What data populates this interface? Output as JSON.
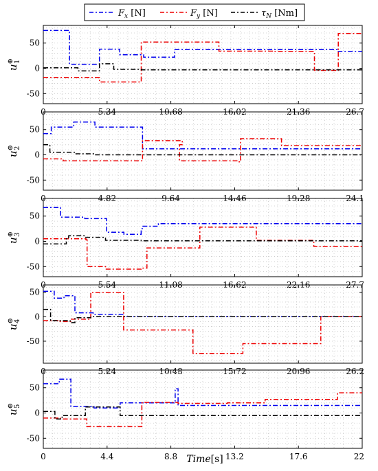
{
  "legend": [
    {
      "label": "F_x [N]",
      "color": "#0000ee"
    },
    {
      "label": "F_y [N]",
      "color": "#ee0000"
    },
    {
      "label": "τ_N [Nm]",
      "color": "#000000"
    }
  ],
  "xlabel": "Time[s]",
  "chart_data": [
    {
      "type": "line",
      "ylabel": "u_1^⊕",
      "xlim": [
        0,
        26.7
      ],
      "ylim": [
        -70,
        85
      ],
      "xticks": [
        "0",
        "5.34",
        "10.68",
        "16.02",
        "21.36",
        "26.7"
      ],
      "yticks": [
        -50,
        0,
        50
      ],
      "grid": true,
      "step": true,
      "series": [
        {
          "name": "F_x [N]",
          "color": "#0000ee",
          "points": [
            [
              0,
              75
            ],
            [
              2.2,
              75
            ],
            [
              2.2,
              8
            ],
            [
              4.7,
              8
            ],
            [
              4.7,
              38
            ],
            [
              6.4,
              38
            ],
            [
              6.4,
              27
            ],
            [
              8.4,
              27
            ],
            [
              8.4,
              22
            ],
            [
              11,
              22
            ],
            [
              11,
              37
            ],
            [
              19,
              37
            ],
            [
              19,
              37
            ],
            [
              24.7,
              37
            ],
            [
              24.7,
              33
            ],
            [
              26.7,
              33
            ]
          ]
        },
        {
          "name": "F_y [N]",
          "color": "#ee0000",
          "points": [
            [
              0,
              -18
            ],
            [
              4.7,
              -18
            ],
            [
              4.7,
              -27
            ],
            [
              8.2,
              -27
            ],
            [
              8.2,
              52
            ],
            [
              14.7,
              52
            ],
            [
              14.7,
              34
            ],
            [
              19.3,
              34
            ],
            [
              19.3,
              34
            ],
            [
              19.3,
              33
            ],
            [
              22.7,
              33
            ],
            [
              22.7,
              -4
            ],
            [
              24.7,
              -4
            ],
            [
              24.7,
              69
            ],
            [
              26.7,
              69
            ]
          ]
        },
        {
          "name": "τ_N [Nm]",
          "color": "#000000",
          "points": [
            [
              0,
              1
            ],
            [
              2.9,
              1
            ],
            [
              2.9,
              -5
            ],
            [
              4.7,
              -5
            ],
            [
              4.7,
              9
            ],
            [
              5.9,
              9
            ],
            [
              5.9,
              -2
            ],
            [
              8.2,
              -2
            ],
            [
              8.2,
              -3
            ],
            [
              26.7,
              -3
            ]
          ]
        }
      ]
    },
    {
      "type": "line",
      "ylabel": "u_2^⊕",
      "xlim": [
        0,
        24.1
      ],
      "ylim": [
        -70,
        85
      ],
      "xticks": [
        "0",
        "4.82",
        "9.64",
        "14.46",
        "19.28",
        "24.1"
      ],
      "yticks": [
        -50,
        0,
        50
      ],
      "grid": true,
      "step": true,
      "series": [
        {
          "name": "F_x [N]",
          "color": "#0000ee",
          "points": [
            [
              0,
              42
            ],
            [
              0.6,
              42
            ],
            [
              0.6,
              55
            ],
            [
              2.3,
              55
            ],
            [
              2.3,
              65
            ],
            [
              3.9,
              65
            ],
            [
              3.9,
              55
            ],
            [
              7.5,
              55
            ],
            [
              7.5,
              12
            ],
            [
              24.1,
              12
            ]
          ]
        },
        {
          "name": "F_y [N]",
          "color": "#ee0000",
          "points": [
            [
              0,
              -8
            ],
            [
              1.5,
              -8
            ],
            [
              1.5,
              -12
            ],
            [
              7.5,
              -12
            ],
            [
              7.5,
              28
            ],
            [
              10.5,
              28
            ],
            [
              10.5,
              20
            ],
            [
              10.5,
              20
            ],
            [
              10.3,
              20
            ],
            [
              10.3,
              -12
            ],
            [
              14.8,
              -12
            ],
            [
              14.8,
              -14
            ],
            [
              14.8,
              -14
            ],
            [
              14.9,
              -14
            ],
            [
              14.9,
              32
            ],
            [
              18,
              32
            ],
            [
              18,
              18
            ],
            [
              24.1,
              18
            ]
          ]
        },
        {
          "name": "τ_N [Nm]",
          "color": "#000000",
          "points": [
            [
              0,
              20
            ],
            [
              0.5,
              20
            ],
            [
              0.5,
              5
            ],
            [
              2.4,
              5
            ],
            [
              2.4,
              2
            ],
            [
              3.8,
              2
            ],
            [
              3.8,
              0
            ],
            [
              24.1,
              0
            ]
          ]
        }
      ]
    },
    {
      "type": "line",
      "ylabel": "u_3^⊕",
      "xlim": [
        0,
        27.7
      ],
      "ylim": [
        -70,
        85
      ],
      "xticks": [
        "0",
        "5.54",
        "11.08",
        "16.62",
        "22.16",
        "27.7"
      ],
      "yticks": [
        -50,
        0,
        50
      ],
      "grid": true,
      "step": true,
      "series": [
        {
          "name": "F_x [N]",
          "color": "#0000ee",
          "points": [
            [
              0,
              67
            ],
            [
              1.5,
              67
            ],
            [
              1.5,
              48
            ],
            [
              3.6,
              48
            ],
            [
              3.6,
              45
            ],
            [
              5.5,
              45
            ],
            [
              5.5,
              18
            ],
            [
              7,
              18
            ],
            [
              7,
              14
            ],
            [
              8.5,
              14
            ],
            [
              8.5,
              25
            ],
            [
              8.6,
              25
            ],
            [
              8.6,
              30
            ],
            [
              10,
              30
            ],
            [
              10,
              35
            ],
            [
              27.7,
              35
            ]
          ]
        },
        {
          "name": "F_y [N]",
          "color": "#ee0000",
          "points": [
            [
              0,
              5
            ],
            [
              3.7,
              5
            ],
            [
              3.7,
              3
            ],
            [
              3.8,
              3
            ],
            [
              3.8,
              -50
            ],
            [
              5.4,
              -50
            ],
            [
              5.4,
              -55
            ],
            [
              8.5,
              -55
            ],
            [
              8.5,
              -53
            ],
            [
              9,
              -53
            ],
            [
              9,
              -13
            ],
            [
              13.6,
              -13
            ],
            [
              13.6,
              28
            ],
            [
              18.5,
              28
            ],
            [
              18.5,
              2
            ],
            [
              23.5,
              2
            ],
            [
              23.5,
              -10
            ],
            [
              27.7,
              -10
            ]
          ]
        },
        {
          "name": "τ_N [Nm]",
          "color": "#000000",
          "points": [
            [
              0,
              -5
            ],
            [
              2,
              -5
            ],
            [
              2,
              5
            ],
            [
              2.2,
              5
            ],
            [
              2.2,
              11
            ],
            [
              3.6,
              11
            ],
            [
              3.6,
              8
            ],
            [
              5.4,
              8
            ],
            [
              5.4,
              2
            ],
            [
              8.5,
              2
            ],
            [
              8.5,
              1
            ],
            [
              27.7,
              1
            ]
          ]
        }
      ]
    },
    {
      "type": "line",
      "ylabel": "u_4^⊕",
      "xlim": [
        0,
        26.2
      ],
      "ylim": [
        -95,
        65
      ],
      "xticks": [
        "0",
        "5.24",
        "10.48",
        "15.72",
        "20.96",
        "26.2"
      ],
      "yticks": [
        -50,
        0,
        50
      ],
      "grid": true,
      "step": true,
      "series": [
        {
          "name": "F_x [N]",
          "color": "#0000ee",
          "points": [
            [
              0,
              52
            ],
            [
              0.9,
              52
            ],
            [
              0.9,
              38
            ],
            [
              1.7,
              38
            ],
            [
              1.7,
              43
            ],
            [
              2.6,
              43
            ],
            [
              2.6,
              8
            ],
            [
              4.1,
              8
            ],
            [
              4.1,
              5
            ],
            [
              6.6,
              5
            ],
            [
              6.6,
              0
            ],
            [
              26.2,
              0
            ]
          ]
        },
        {
          "name": "F_y [N]",
          "color": "#ee0000",
          "points": [
            [
              0,
              -8
            ],
            [
              1.3,
              -8
            ],
            [
              1.3,
              -10
            ],
            [
              2.3,
              -10
            ],
            [
              2.3,
              -5
            ],
            [
              3.9,
              -5
            ],
            [
              3.9,
              50
            ],
            [
              6.6,
              50
            ],
            [
              6.6,
              -27
            ],
            [
              12.3,
              -27
            ],
            [
              12.3,
              -75
            ],
            [
              16.4,
              -75
            ],
            [
              16.4,
              -55
            ],
            [
              22.8,
              -55
            ],
            [
              22.8,
              0
            ],
            [
              26.2,
              0
            ]
          ]
        },
        {
          "name": "τ_N [Nm]",
          "color": "#000000",
          "points": [
            [
              0,
              15
            ],
            [
              0.6,
              15
            ],
            [
              0.6,
              -8
            ],
            [
              2.2,
              -8
            ],
            [
              2.2,
              -12
            ],
            [
              2.6,
              -12
            ],
            [
              2.6,
              -2
            ],
            [
              3.9,
              -2
            ],
            [
              3.9,
              0
            ],
            [
              26.2,
              0
            ]
          ]
        }
      ]
    },
    {
      "type": "line",
      "ylabel": "u_5^⊕",
      "xlim": [
        0,
        22
      ],
      "ylim": [
        -70,
        85
      ],
      "xticks": [
        "0",
        "4.4",
        "8.8",
        "13.2",
        "17.6",
        "22"
      ],
      "yticks": [
        -50,
        0,
        50
      ],
      "grid": true,
      "step": true,
      "series": [
        {
          "name": "F_x [N]",
          "color": "#0000ee",
          "points": [
            [
              0,
              58
            ],
            [
              1.1,
              58
            ],
            [
              1.1,
              67
            ],
            [
              1.9,
              67
            ],
            [
              1.9,
              13
            ],
            [
              3.5,
              13
            ],
            [
              3.5,
              10
            ],
            [
              5.3,
              10
            ],
            [
              5.3,
              20
            ],
            [
              9.1,
              20
            ],
            [
              9.1,
              48
            ],
            [
              9.3,
              48
            ],
            [
              9.3,
              15
            ],
            [
              22,
              15
            ]
          ]
        },
        {
          "name": "F_y [N]",
          "color": "#ee0000",
          "points": [
            [
              0,
              -10
            ],
            [
              1.2,
              -10
            ],
            [
              1.2,
              -12
            ],
            [
              3,
              -12
            ],
            [
              3,
              -27
            ],
            [
              6.8,
              -27
            ],
            [
              6.8,
              20
            ],
            [
              7,
              20
            ],
            [
              7,
              21
            ],
            [
              9.3,
              21
            ],
            [
              9.3,
              19
            ],
            [
              12.7,
              19
            ],
            [
              12.7,
              20
            ],
            [
              15.3,
              20
            ],
            [
              15.3,
              27
            ],
            [
              20.3,
              27
            ],
            [
              20.3,
              40
            ],
            [
              22,
              40
            ]
          ]
        },
        {
          "name": "τ_N [Nm]",
          "color": "#000000",
          "points": [
            [
              0,
              3
            ],
            [
              0.8,
              3
            ],
            [
              0.8,
              -12
            ],
            [
              1.3,
              -12
            ],
            [
              1.3,
              -5
            ],
            [
              2.9,
              -5
            ],
            [
              2.9,
              12
            ],
            [
              5.3,
              12
            ],
            [
              5.3,
              -5
            ],
            [
              22,
              -5
            ]
          ]
        }
      ]
    }
  ]
}
